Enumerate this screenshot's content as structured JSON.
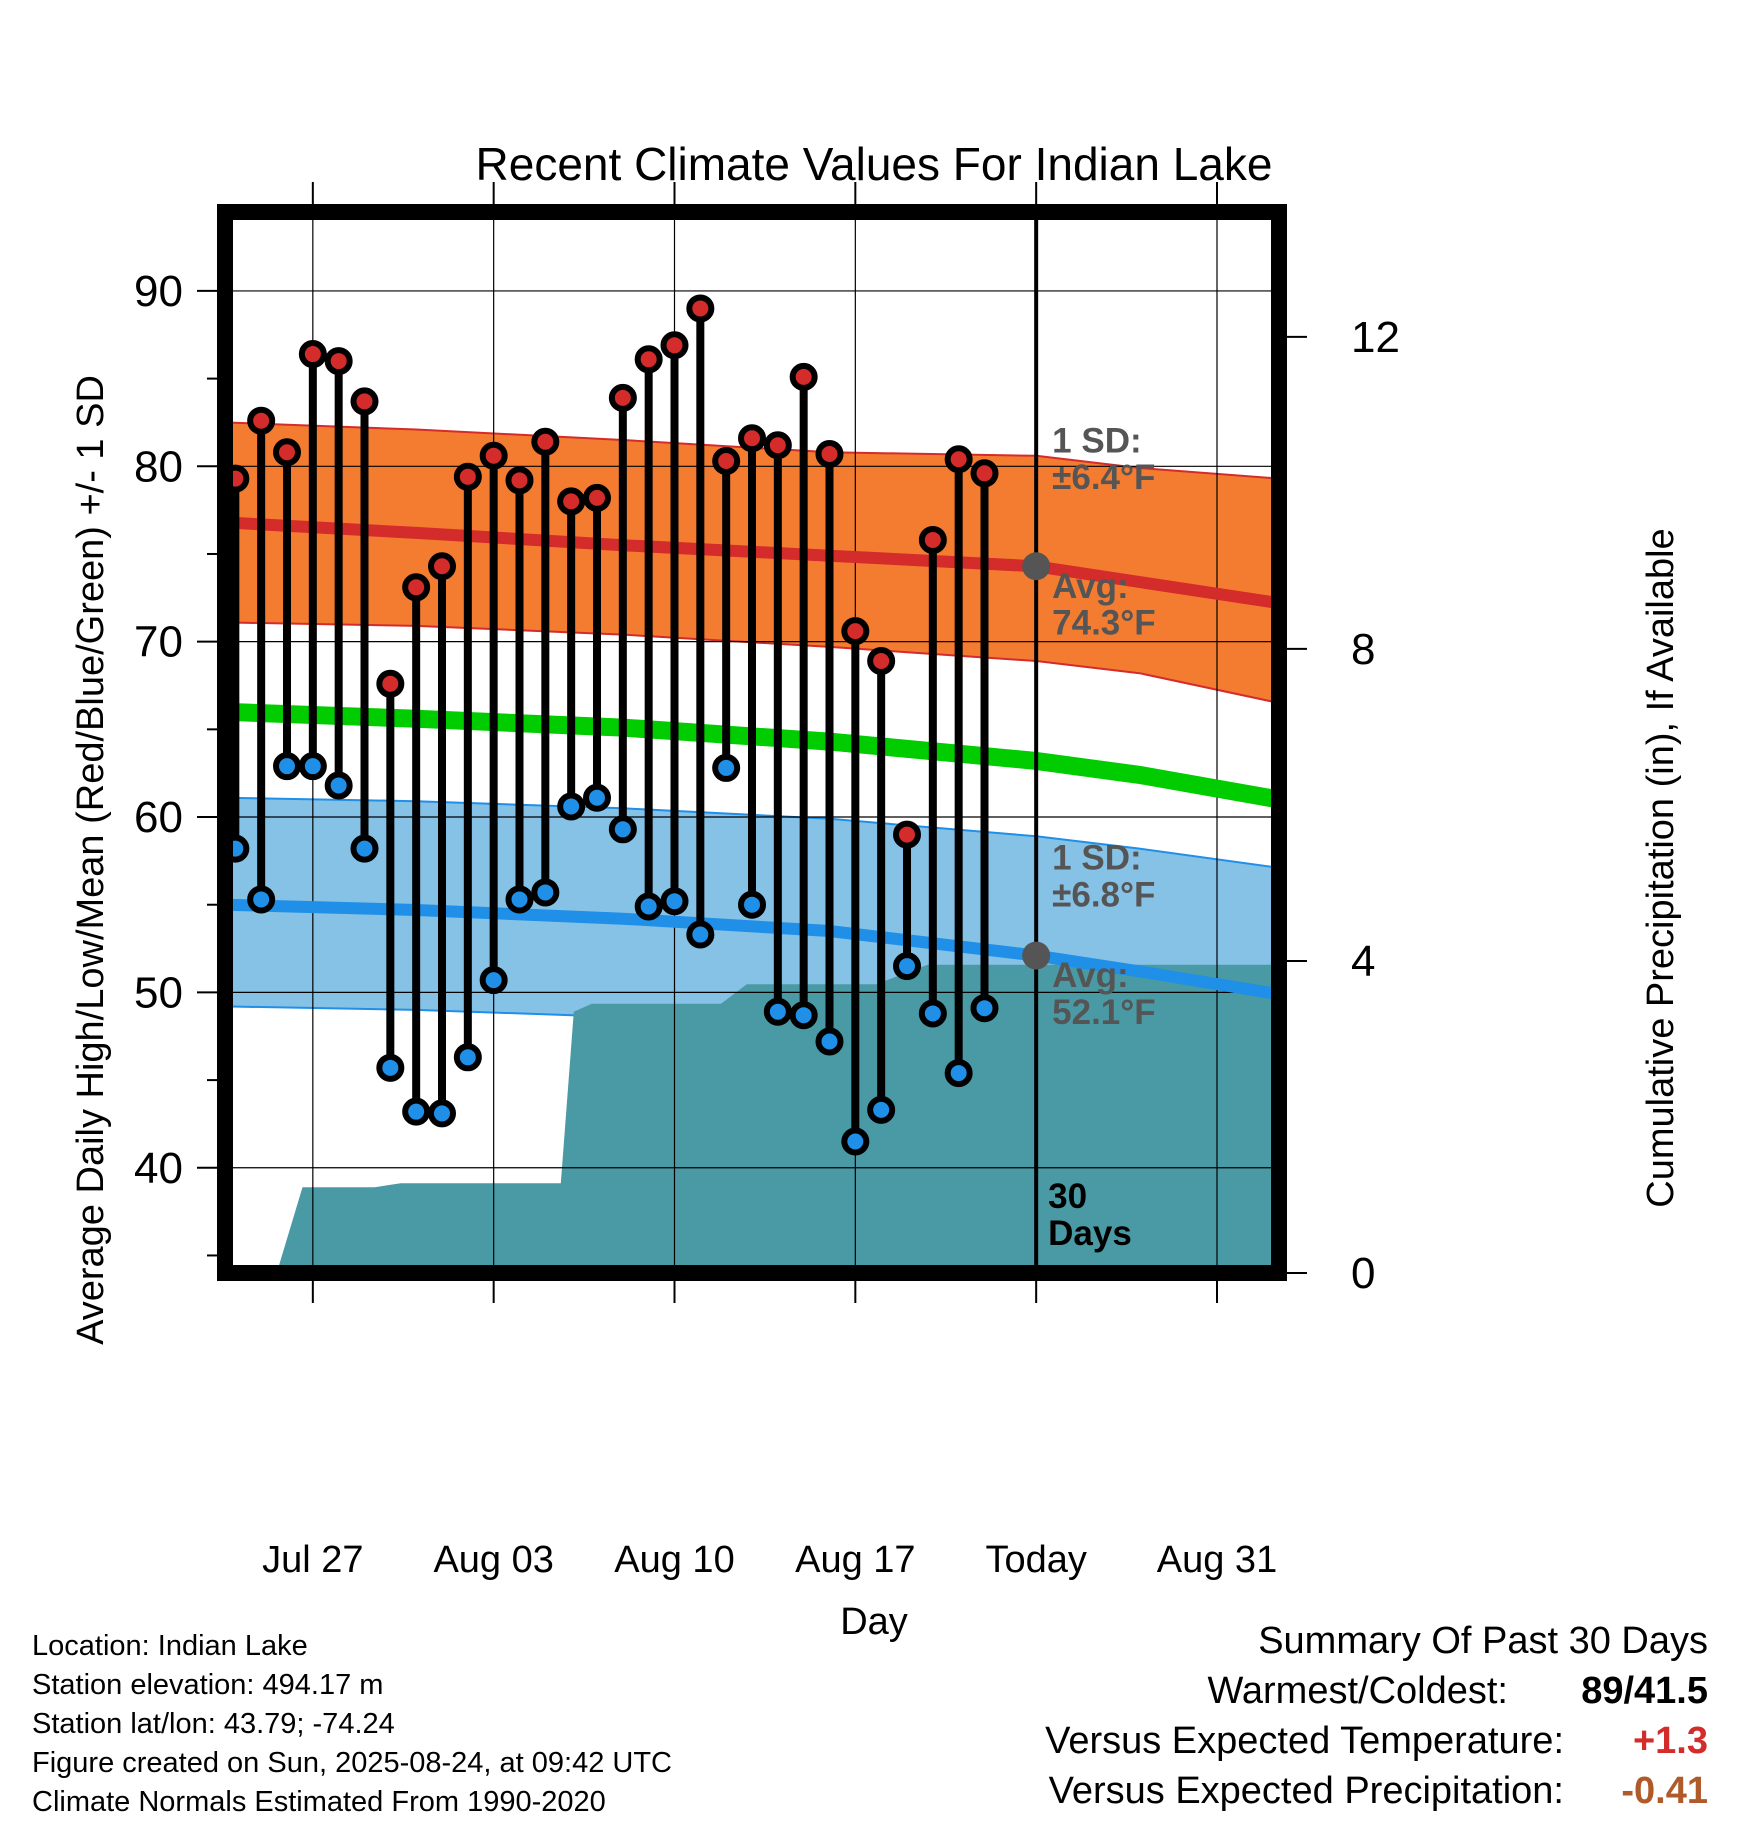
{
  "title": "Recent Climate Values For Indian Lake",
  "colors": {
    "high_marker": "#d42b2b",
    "low_marker": "#1f8fe8",
    "high_band": "#f47c30",
    "high_band_edge": "#d42b2b",
    "high_avg_line": "#d42b2b",
    "low_band": "#86c2e6",
    "low_band_edge": "#1f8fe8",
    "low_avg_line": "#1f8fe8",
    "mean_line": "#00cc00",
    "precip_fill": "#4a9aa5",
    "annotation": "#555555",
    "temp_positive": "#d42b2b",
    "precip_negative": "#b05a2a"
  },
  "chart_data": {
    "type": "line",
    "title": "Recent Climate Values For Indian Lake",
    "xlabel": "Day",
    "ylabel": "Average Daily High/Low/Mean (Red/Blue/Green) +/- 1 SD",
    "y2label": "Cumulative Precipitation (in), If Available",
    "x_ticks": [
      {
        "day": 4,
        "label": "Jul 27"
      },
      {
        "day": 11,
        "label": "Aug 03"
      },
      {
        "day": 18,
        "label": "Aug 10"
      },
      {
        "day": 25,
        "label": "Aug 17"
      },
      {
        "day": 32,
        "label": "Today"
      },
      {
        "day": 39,
        "label": "Aug 31"
      }
    ],
    "x_range": [
      0.6,
      41.4
    ],
    "y_ticks": [
      40,
      50,
      60,
      70,
      80,
      90
    ],
    "y_range": [
      34.0,
      94.5
    ],
    "y2_ticks": [
      0,
      4,
      8,
      12
    ],
    "y2_range": [
      0,
      13.6
    ],
    "grid": true,
    "days": [
      1,
      2,
      3,
      4,
      5,
      6,
      7,
      8,
      9,
      10,
      11,
      12,
      13,
      14,
      15,
      16,
      17,
      18,
      19,
      20,
      21,
      22,
      23,
      24,
      25,
      26,
      27,
      28,
      29,
      30,
      31
    ],
    "series": [
      {
        "name": "High",
        "values": [
          79.3,
          82.6,
          80.8,
          86.4,
          86.0,
          83.7,
          67.6,
          73.1,
          74.3,
          79.4,
          80.6,
          79.2,
          81.4,
          78.0,
          78.2,
          83.9,
          86.1,
          86.9,
          89.0,
          80.3,
          81.6,
          81.2,
          85.1,
          80.7,
          70.6,
          68.9,
          59.0,
          75.8,
          80.4,
          79.6,
          null
        ]
      },
      {
        "name": "Low",
        "values": [
          58.2,
          55.3,
          62.9,
          62.9,
          61.8,
          58.2,
          45.7,
          43.2,
          43.1,
          46.3,
          50.7,
          55.3,
          55.7,
          60.6,
          61.1,
          59.3,
          54.9,
          55.2,
          53.3,
          62.8,
          55.0,
          48.9,
          48.7,
          47.2,
          41.5,
          43.3,
          51.5,
          48.8,
          45.4,
          49.1,
          null
        ]
      }
    ],
    "normals": {
      "days": [
        0.6,
        8,
        16,
        24,
        32,
        36,
        41.4
      ],
      "high_avg": [
        76.8,
        76.2,
        75.5,
        74.9,
        74.3,
        73.4,
        72.2
      ],
      "high_plus_sd": [
        82.5,
        82.1,
        81.5,
        80.8,
        80.6,
        79.9,
        79.3
      ],
      "high_minus_sd": [
        71.1,
        70.9,
        70.4,
        69.7,
        68.9,
        68.2,
        66.5
      ],
      "mean": [
        66.0,
        65.6,
        65.1,
        64.3,
        63.2,
        62.4,
        61.0
      ],
      "low_avg": [
        55.0,
        54.7,
        54.2,
        53.5,
        52.1,
        51.2,
        49.9
      ],
      "low_plus_sd": [
        61.1,
        60.9,
        60.5,
        59.9,
        58.9,
        58.2,
        57.1
      ],
      "low_minus_sd": [
        49.2,
        49.0,
        48.6,
        47.8,
        45.9,
        44.8,
        43.4
      ]
    },
    "precip_cumulative": {
      "days": [
        2.6,
        3.6,
        6.4,
        7.4,
        13.6,
        14.1,
        14.8,
        19.8,
        20.8,
        25.8,
        27.8,
        32,
        41.4
      ],
      "values": [
        0,
        1.1,
        1.1,
        1.15,
        1.15,
        3.35,
        3.45,
        3.45,
        3.7,
        3.7,
        3.95,
        3.95,
        3.95
      ]
    },
    "annotations": {
      "high_sd_label": "1 SD:",
      "high_sd_value": "±6.4°F",
      "high_avg_label": "Avg:",
      "high_avg_value": "74.3°F",
      "low_sd_label": "1 SD:",
      "low_sd_value": "±6.8°F",
      "low_avg_label": "Avg:",
      "low_avg_value": "52.1°F",
      "period_number": "30",
      "period_unit": "Days",
      "today_day": 32,
      "today_high_avg": 74.3,
      "today_low_avg": 52.1
    }
  },
  "info": {
    "location": "Location: Indian Lake",
    "elevation": "Station elevation: 494.17 m",
    "latlon": "Station lat/lon: 43.79; -74.24",
    "created": "Figure created on Sun, 2025-08-24, at 09:42 UTC",
    "normals": "Climate Normals Estimated From 1990-2020"
  },
  "summary": {
    "title": "Summary Of Past 30 Days",
    "warm_cold_label": "Warmest/Coldest:",
    "warm_cold_value": "89/41.5",
    "temp_label": "Versus Expected Temperature:",
    "temp_value": "+1.3",
    "precip_label": "Versus Expected Precipitation:",
    "precip_value": "-0.41"
  }
}
